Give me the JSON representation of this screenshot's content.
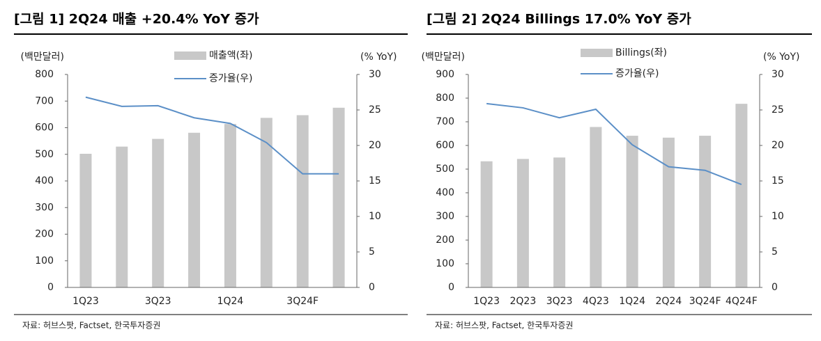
{
  "chart_data": [
    {
      "type": "bar-line",
      "title": "[그림 1] 2Q24 매출 +20.4% YoY 증가",
      "y_label": "(백만달러)",
      "y2_label": "(% YoY)",
      "categories": [
        "1Q23",
        null,
        "3Q23",
        null,
        "1Q24",
        null,
        "3Q24F",
        null
      ],
      "series": [
        {
          "name": "매출액(좌)",
          "color": "#c8c8c8",
          "type": "bar",
          "values": [
            502,
            529,
            558,
            581,
            614,
            637,
            647,
            675
          ]
        },
        {
          "name": "증가율(우)",
          "color": "#5b8fc7",
          "type": "line",
          "axis": "y2",
          "values": [
            26.8,
            25.5,
            25.6,
            23.9,
            23.1,
            20.4,
            16.0,
            16.0
          ]
        }
      ],
      "ylim": [
        0,
        800
      ],
      "yticks": [
        0,
        100,
        200,
        300,
        400,
        500,
        600,
        700,
        800
      ],
      "y2lim": [
        0,
        30
      ],
      "y2ticks": [
        0,
        5,
        10,
        15,
        20,
        25,
        30
      ],
      "source": "자료: 허브스팟, Factset, 한국투자증권"
    },
    {
      "type": "bar-line",
      "title": "[그림 2] 2Q24 Billings 17.0% YoY 증가",
      "y_label": "(백만달러)",
      "y2_label": "(% YoY)",
      "categories": [
        "1Q23",
        "2Q23",
        "3Q23",
        "4Q23",
        "1Q24",
        "2Q24",
        "3Q24F",
        "4Q24F"
      ],
      "series": [
        {
          "name": "Billings(좌)",
          "color": "#c8c8c8",
          "type": "bar",
          "values": [
            533,
            543,
            549,
            678,
            641,
            633,
            641,
            776
          ]
        },
        {
          "name": "증가율(우)",
          "color": "#5b8fc7",
          "type": "line",
          "axis": "y2",
          "values": [
            25.9,
            25.3,
            23.9,
            25.1,
            20.1,
            17.0,
            16.5,
            14.5
          ]
        }
      ],
      "ylim": [
        0,
        900
      ],
      "yticks": [
        0,
        100,
        200,
        300,
        400,
        500,
        600,
        700,
        800,
        900
      ],
      "y2lim": [
        0,
        30
      ],
      "y2ticks": [
        0,
        5,
        10,
        15,
        20,
        25,
        30
      ],
      "source": "자료: 허브스팟, Factset, 한국투자증권"
    }
  ]
}
